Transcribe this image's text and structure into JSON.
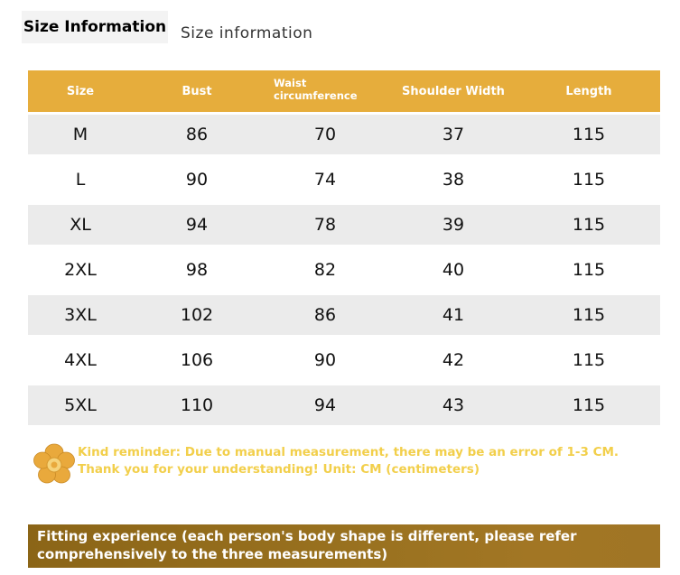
{
  "header": {
    "title": "Size Information",
    "subtitle": "Size information"
  },
  "table": {
    "columns": [
      "Size",
      "Bust",
      "Waist circumference",
      "Shoulder Width",
      "Length"
    ],
    "rows": [
      [
        "M",
        "86",
        "70",
        "37",
        "115"
      ],
      [
        "L",
        "90",
        "74",
        "38",
        "115"
      ],
      [
        "XL",
        "94",
        "78",
        "39",
        "115"
      ],
      [
        "2XL",
        "98",
        "82",
        "40",
        "115"
      ],
      [
        "3XL",
        "102",
        "86",
        "41",
        "115"
      ],
      [
        "4XL",
        "106",
        "90",
        "42",
        "115"
      ],
      [
        "5XL",
        "110",
        "94",
        "43",
        "115"
      ]
    ]
  },
  "reminder": {
    "icon": "flower-icon",
    "text": "Kind reminder: Due to manual measurement, there may be an error of 1-3 CM. Thank you for your understanding! Unit: CM (centimeters)"
  },
  "fitting": {
    "text": "Fitting experience (each person's body shape is different, please refer comprehensively to the three measurements)"
  },
  "colors": {
    "header_bg": "#e6ad3c",
    "row_shade": "#ebebeb",
    "reminder_text": "#f2cf4b",
    "fit_bar": "#9a7220"
  }
}
